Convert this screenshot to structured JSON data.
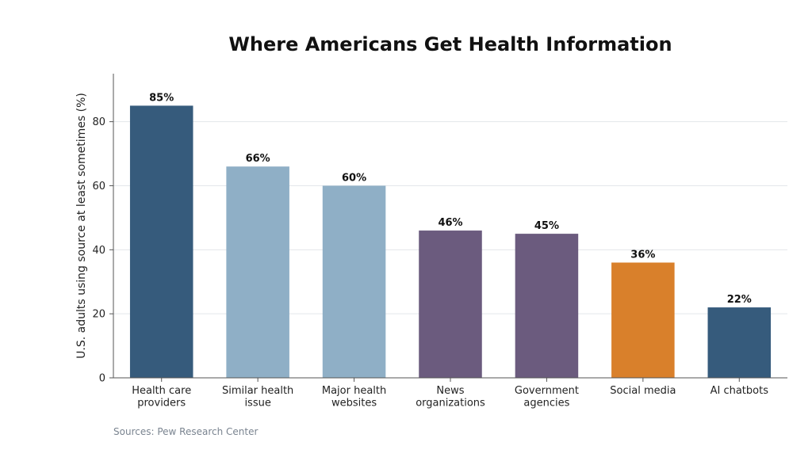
{
  "chart_data": {
    "type": "bar",
    "title": "Where Americans Get Health Information",
    "xlabel": "",
    "ylabel": "U.S. adults using source at least sometimes (%)",
    "categories": [
      [
        "Health care",
        "providers"
      ],
      [
        "Similar health",
        "issue"
      ],
      [
        "Major health",
        "websites"
      ],
      [
        "News",
        "organizations"
      ],
      [
        "Government",
        "agencies"
      ],
      [
        "Social media"
      ],
      [
        "AI chatbots"
      ]
    ],
    "values": [
      85,
      66,
      60,
      46,
      45,
      36,
      22
    ],
    "value_labels": [
      "85%",
      "66%",
      "60%",
      "46%",
      "45%",
      "36%",
      "22%"
    ],
    "bar_colors": [
      "#365b7c",
      "#8fafc6",
      "#8fafc6",
      "#6b5b7e",
      "#6b5b7e",
      "#d9802b",
      "#365b7c"
    ],
    "ylim": [
      0,
      95
    ],
    "yticks": [
      0,
      20,
      40,
      60,
      80
    ],
    "grid": true,
    "legend": "none"
  },
  "footer": {
    "source": "Sources: Pew Research Center"
  }
}
